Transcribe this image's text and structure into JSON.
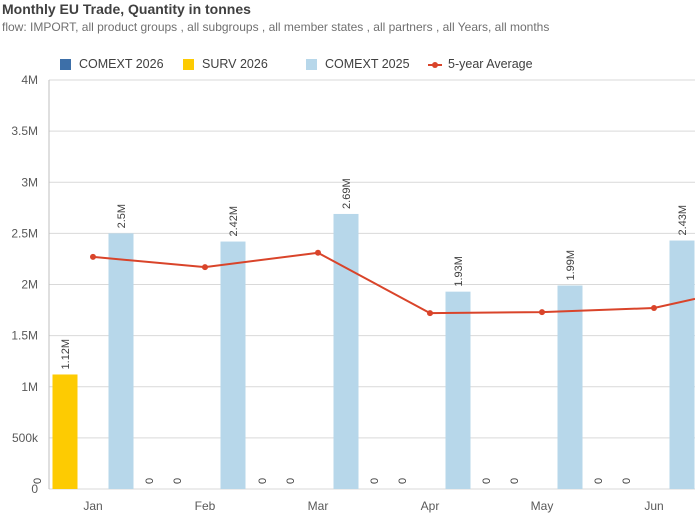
{
  "header": {
    "title": "Monthly EU Trade, Quantity in tonnes",
    "subtitle": "flow: IMPORT, all product groups , all subgroups , all member states , all partners , all Years, all months"
  },
  "legend": [
    {
      "name": "COMEXT 2026",
      "color": "#3d6fa8",
      "kind": "bar"
    },
    {
      "name": "SURV 2026",
      "color": "#fdcb02",
      "kind": "bar"
    },
    {
      "name": "COMEXT 2025",
      "color": "#b7d7ea",
      "kind": "bar"
    },
    {
      "name": "5-year Average",
      "color": "#d9442a",
      "kind": "line"
    }
  ],
  "chart_data": {
    "type": "bar",
    "title": "Monthly EU Trade, Quantity in tonnes",
    "xlabel": "",
    "ylabel": "",
    "ylim": [
      0,
      4000000
    ],
    "yticks": [
      {
        "value": 0,
        "label": "0"
      },
      {
        "value": 500000,
        "label": "500k"
      },
      {
        "value": 1000000,
        "label": "1M"
      },
      {
        "value": 1500000,
        "label": "1.5M"
      },
      {
        "value": 2000000,
        "label": "2M"
      },
      {
        "value": 2500000,
        "label": "2.5M"
      },
      {
        "value": 3000000,
        "label": "3M"
      },
      {
        "value": 3500000,
        "label": "3.5M"
      },
      {
        "value": 4000000,
        "label": "4M"
      }
    ],
    "grid": true,
    "categories": [
      "Jan",
      "Feb",
      "Mar",
      "Apr",
      "May",
      "Jun"
    ],
    "series": [
      {
        "name": "COMEXT 2026",
        "type": "bar",
        "color": "#3d6fa8",
        "values": [
          0,
          0,
          0,
          0,
          0,
          0
        ],
        "labels": [
          "0",
          "0",
          "0",
          "0",
          "0",
          "0"
        ]
      },
      {
        "name": "SURV 2026",
        "type": "bar",
        "color": "#fdcb02",
        "values": [
          1120000,
          0,
          0,
          0,
          0,
          0
        ],
        "labels": [
          "1.12M",
          "0",
          "0",
          "0",
          "0",
          "0"
        ]
      },
      {
        "name": "COMEXT 2025",
        "type": "bar",
        "color": "#b7d7ea",
        "values": [
          2500000,
          2420000,
          2690000,
          1930000,
          1990000,
          2430000
        ],
        "labels": [
          "2.5M",
          "2.42M",
          "2.69M",
          "1.93M",
          "1.99M",
          "2.43M"
        ]
      },
      {
        "name": "5-year Average",
        "type": "line",
        "color": "#d9442a",
        "values": [
          2270000,
          2170000,
          2310000,
          1720000,
          1730000,
          1770000
        ],
        "continues_to": 1860000
      }
    ]
  }
}
